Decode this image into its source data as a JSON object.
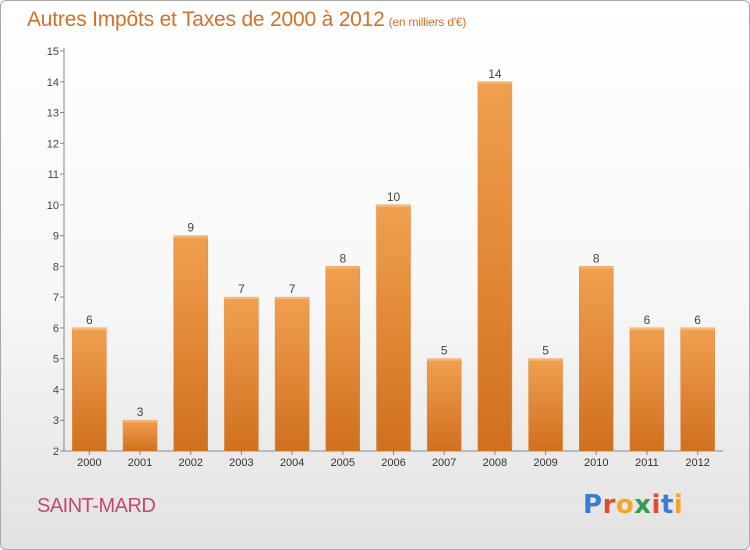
{
  "title": "Autres Impôts et Taxes de 2000 à 2012",
  "title_unit": "(en milliers d'€)",
  "place": "SAINT-MARD",
  "logo": {
    "text": "Proxiti",
    "colors": [
      "#3a7bd5",
      "#e64a2e",
      "#f5a623",
      "#2e9e4f",
      "#e64a2e",
      "#3a7bd5",
      "#f5a623"
    ]
  },
  "colors": {
    "bar": "#f0a050",
    "bar_dark": "#d0701e",
    "title": "#d4702a",
    "place": "#c24a6c"
  },
  "chart_data": {
    "type": "bar",
    "categories": [
      "2000",
      "2001",
      "2002",
      "2003",
      "2004",
      "2005",
      "2006",
      "2007",
      "2008",
      "2009",
      "2010",
      "2011",
      "2012"
    ],
    "values": [
      6,
      3,
      9,
      7,
      7,
      8,
      10,
      5,
      14,
      5,
      8,
      6,
      6
    ],
    "title": "Autres Impôts et Taxes de 2000 à 2012",
    "ylim": [
      2,
      15
    ],
    "yticks": [
      2,
      3,
      4,
      5,
      6,
      7,
      8,
      9,
      10,
      11,
      12,
      13,
      14,
      15
    ],
    "grid": false,
    "data_labels": true
  }
}
